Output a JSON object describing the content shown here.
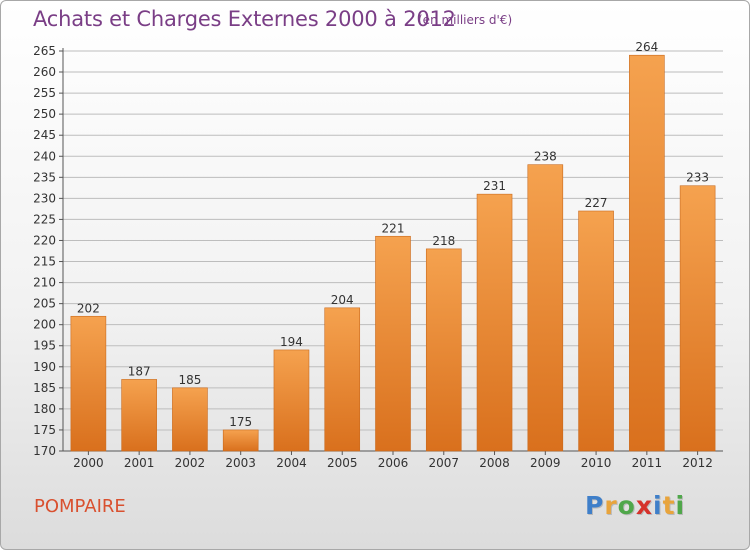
{
  "header": {
    "title": "Achats et Charges Externes 2000 à 2012",
    "subtitle": "(en milliers d'€)"
  },
  "footer": {
    "commune": "POMPAIRE",
    "logo_letters": [
      "P",
      "r",
      "o",
      "x",
      "i",
      "t",
      "i"
    ],
    "logo_colors": [
      "#3f7fc9",
      "#e8a43c",
      "#4fa74a",
      "#d6322b",
      "#3f7fc9",
      "#e8a43c",
      "#4fa74a"
    ]
  },
  "colors": {
    "bar_top": "#f5a24f",
    "bar_bottom": "#d9701d",
    "bar_edge": "#c96a1e",
    "grid": "#bdbdbd",
    "axis_text": "#333333"
  },
  "chart_data": {
    "type": "bar",
    "categories": [
      "2000",
      "2001",
      "2002",
      "2003",
      "2004",
      "2005",
      "2006",
      "2007",
      "2008",
      "2009",
      "2010",
      "2011",
      "2012"
    ],
    "values": [
      202,
      187,
      185,
      175,
      194,
      204,
      221,
      218,
      231,
      238,
      227,
      264,
      233
    ],
    "ylim": [
      170,
      265
    ],
    "yticks": [
      170,
      175,
      180,
      185,
      190,
      195,
      200,
      205,
      210,
      215,
      220,
      225,
      230,
      235,
      240,
      245,
      250,
      255,
      260,
      265
    ],
    "grid": true
  }
}
